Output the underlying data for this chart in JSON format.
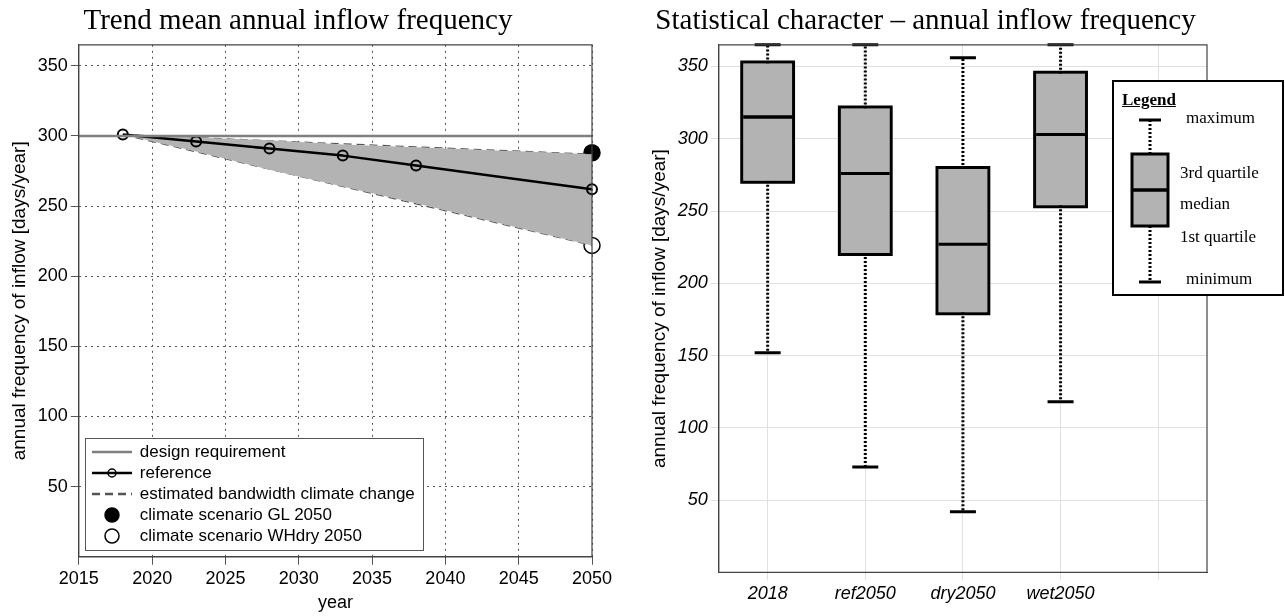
{
  "chart_data": [
    {
      "type": "line",
      "title": "Trend mean annual inflow frequency",
      "xlabel": "year",
      "ylabel": "annual frequency of inflow [days/year]",
      "xlim": [
        2015,
        2050
      ],
      "xticks": [
        2015,
        2020,
        2025,
        2030,
        2035,
        2040,
        2045,
        2050
      ],
      "ylim": [
        0,
        365
      ],
      "yticks": [
        50,
        100,
        150,
        200,
        250,
        300,
        350
      ],
      "grid": true,
      "legend": "bottom left",
      "ref_lines": [
        {
          "axis": "y",
          "value": 300,
          "label": "design requirement",
          "color": "#808080"
        }
      ],
      "series": [
        {
          "name": "reference",
          "type": "line",
          "color": "#000000",
          "marker": "circle",
          "x": [
            2018,
            2023,
            2028,
            2033,
            2038,
            2050
          ],
          "values": [
            301,
            296,
            291,
            286,
            279,
            262
          ],
          "lower": [
            301,
            289,
            276,
            264,
            252,
            222
          ],
          "upper": [
            301,
            299,
            297,
            294,
            292,
            287
          ]
        },
        {
          "name": "estimated bandwidth climate change",
          "type": "line",
          "color": "#555555",
          "line_style": "dashed",
          "marker": "none",
          "x": [
            2018,
            2050
          ],
          "values": [
            301,
            287
          ]
        },
        {
          "type": "line",
          "color": "#555555",
          "line_style": "dashed",
          "marker": "none",
          "x": [
            2018,
            2050
          ],
          "values": [
            301,
            222
          ]
        },
        {
          "name": "climate scenario GL 2050",
          "type": "scatter",
          "color": "#000000",
          "marker": "circle",
          "x": [
            2050
          ],
          "values": [
            288
          ]
        },
        {
          "name": "climate scenario WHdry 2050",
          "type": "scatter",
          "color": "#ffffff",
          "marker": "circle",
          "x": [
            2050
          ],
          "values": [
            222
          ]
        }
      ]
    },
    {
      "type": "box",
      "title": "Statistical character – annual inflow frequency",
      "ylabel": "annual frequency of inflow [days/year]",
      "categories": [
        "2018",
        "ref2050",
        "dry2050",
        "wet2050",
        null
      ],
      "ylim": [
        0,
        365
      ],
      "yticks": [
        50,
        100,
        150,
        200,
        250,
        300,
        350
      ],
      "grid": true,
      "color": "#b3b3b3",
      "legend_title": "Legend",
      "annotations": [
        "maximum",
        "3rd quartile",
        "median",
        "1st quartile",
        "minimum"
      ],
      "boxes": [
        {
          "low": 152,
          "q1": 271,
          "median": 315,
          "q3": 352,
          "high": 365
        },
        {
          "low": 73,
          "q1": 221,
          "median": 276,
          "q3": 321,
          "high": 365
        },
        {
          "low": 42,
          "q1": 180,
          "median": 227,
          "q3": 279,
          "high": 356
        },
        {
          "low": 118,
          "q1": 254,
          "median": 303,
          "q3": 345,
          "high": 365
        },
        null
      ]
    }
  ]
}
